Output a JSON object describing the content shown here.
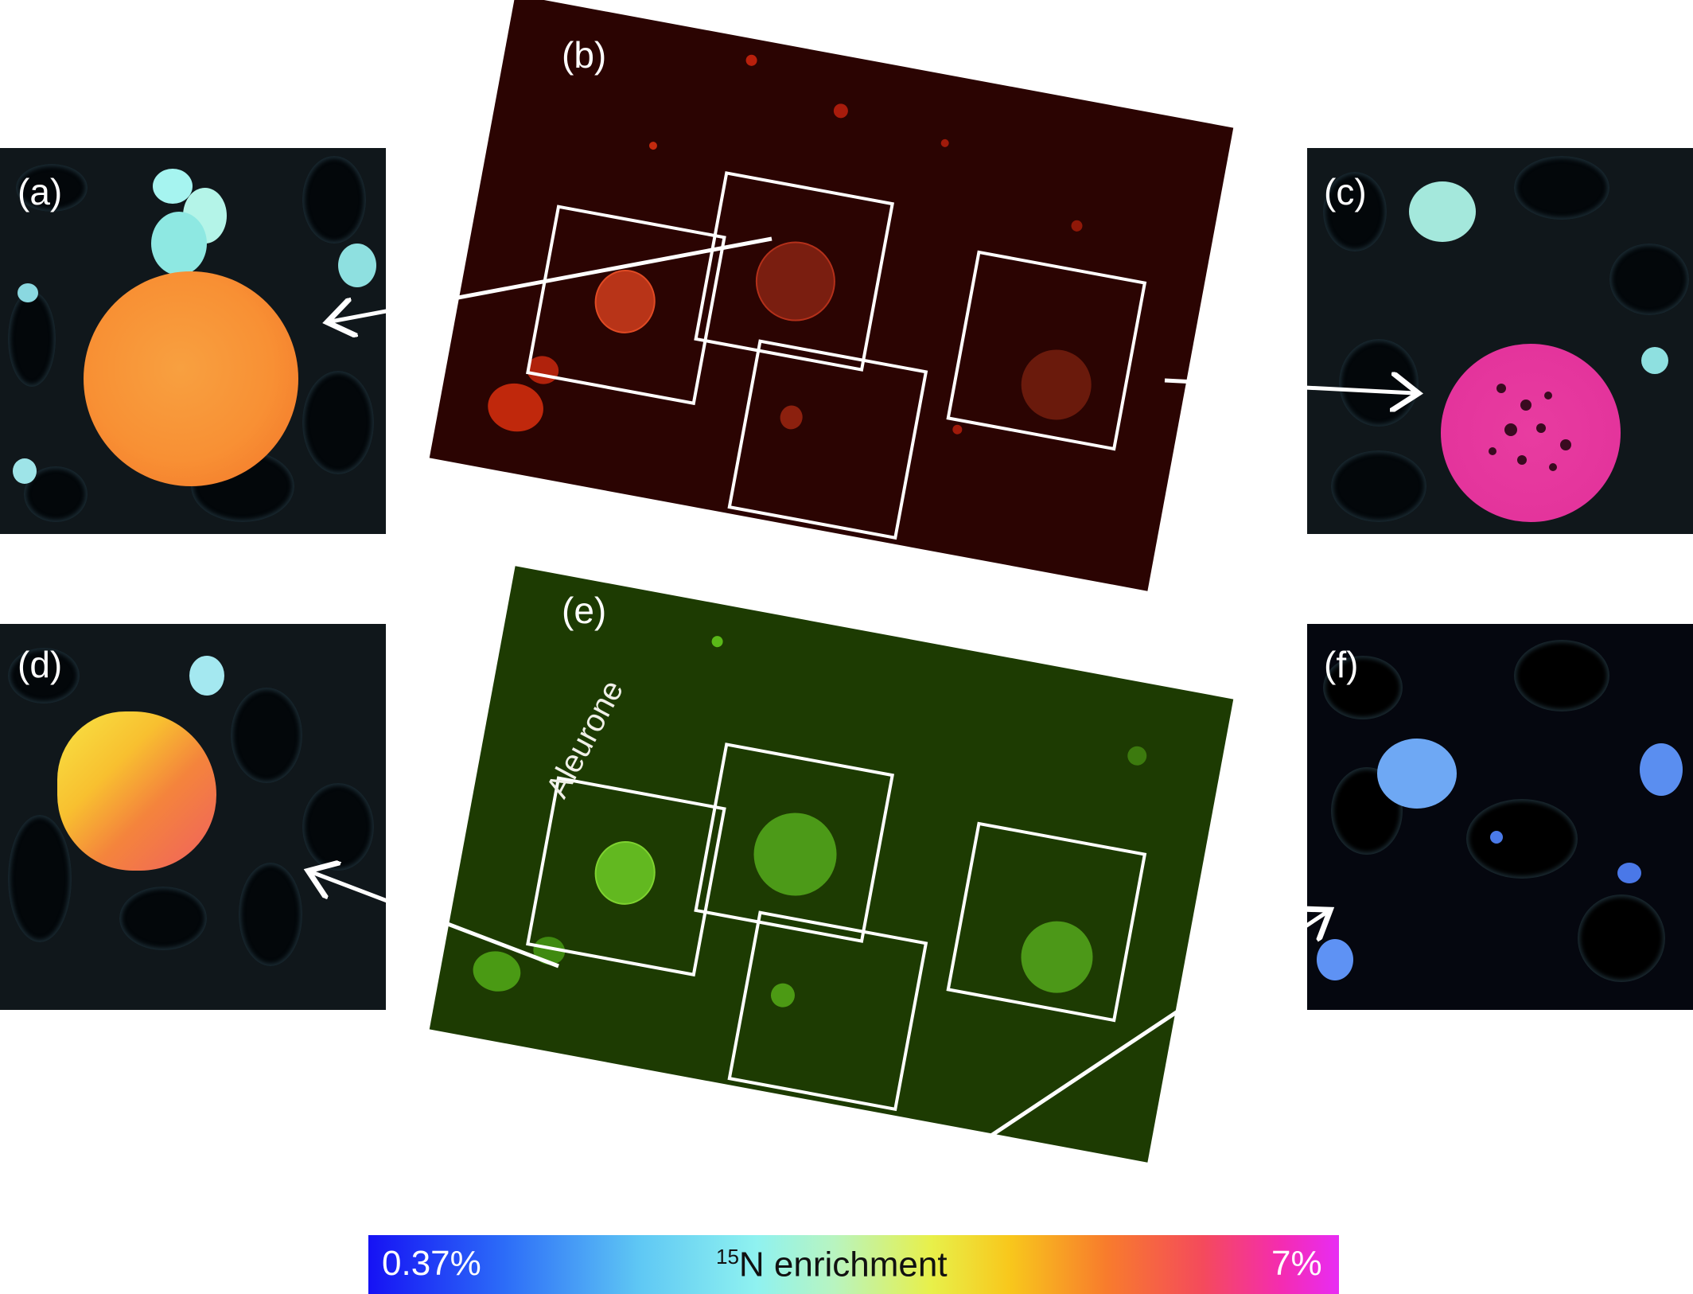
{
  "panels": {
    "a": "(a)",
    "b": "(b)",
    "c": "(c)",
    "d": "(d)",
    "e": "(e)",
    "f": "(f)"
  },
  "annotations": {
    "aleurone": "Aleurone"
  },
  "colorbar": {
    "min_label": "0.37%",
    "title_sup": "15",
    "title_text": "N enrichment",
    "max_label": "7%",
    "colors": [
      "#1612f4",
      "#5fc8f4",
      "#8ff2f0",
      "#e8f04a",
      "#f87c2c",
      "#f42cb0",
      "#e82cf4"
    ]
  },
  "colors": {
    "red_channel_bg": "#2b0402",
    "green_channel_bg": "#1d3b02",
    "box_outline": "#ffffff",
    "arrow": "#ffffff"
  }
}
